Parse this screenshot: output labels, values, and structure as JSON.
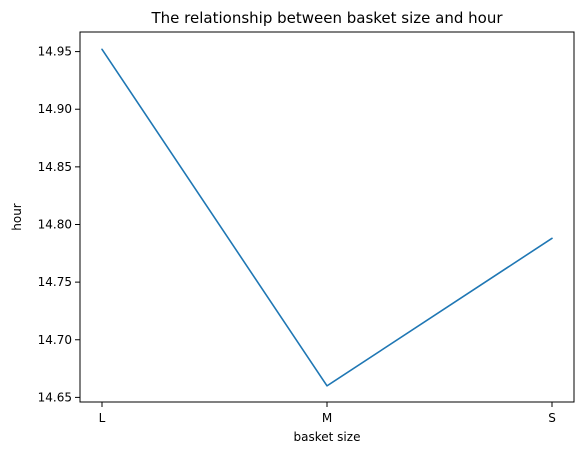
{
  "chart_data": {
    "type": "line",
    "title": "The relationship between basket size and hour",
    "xlabel": "basket size",
    "ylabel": "hour",
    "categories": [
      "L",
      "M",
      "S"
    ],
    "series": [
      {
        "values": [
          14.952,
          14.66,
          14.788
        ],
        "color": "#1f77b4"
      }
    ],
    "ylim": [
      14.646,
      14.967
    ],
    "yticks": [
      "14.65",
      "14.70",
      "14.75",
      "14.80",
      "14.85",
      "14.90",
      "14.95"
    ],
    "grid": false,
    "legend": "none"
  }
}
